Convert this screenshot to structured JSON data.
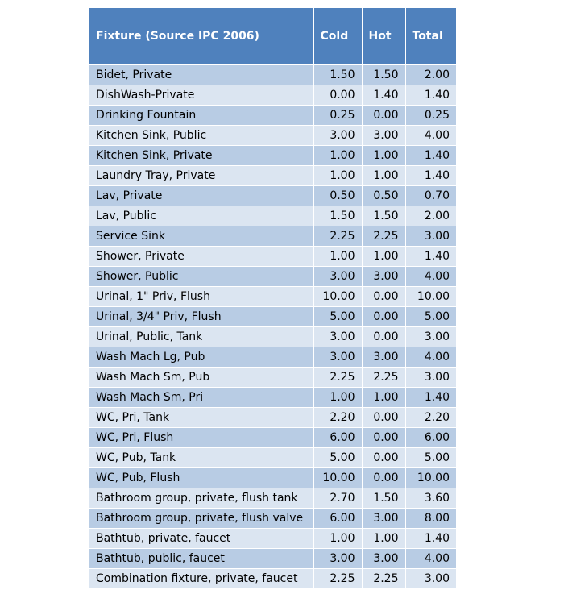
{
  "table": {
    "header": [
      "Fixture (Source IPC 2006)",
      "Cold",
      "Hot",
      "Total"
    ],
    "rows": [
      [
        "Bidet, Private",
        "1.50",
        "1.50",
        "2.00"
      ],
      [
        "DishWash-Private",
        "0.00",
        "1.40",
        "1.40"
      ],
      [
        "Drinking Fountain",
        "0.25",
        "0.00",
        "0.25"
      ],
      [
        "Kitchen Sink, Public",
        "3.00",
        "3.00",
        "4.00"
      ],
      [
        "Kitchen Sink, Private",
        "1.00",
        "1.00",
        "1.40"
      ],
      [
        "Laundry Tray, Private",
        "1.00",
        "1.00",
        "1.40"
      ],
      [
        "Lav, Private",
        "0.50",
        "0.50",
        "0.70"
      ],
      [
        "Lav, Public",
        "1.50",
        "1.50",
        "2.00"
      ],
      [
        "Service Sink",
        "2.25",
        "2.25",
        "3.00"
      ],
      [
        "Shower, Private",
        "1.00",
        "1.00",
        "1.40"
      ],
      [
        "Shower, Public",
        "3.00",
        "3.00",
        "4.00"
      ],
      [
        "Urinal, 1\" Priv, Flush",
        "10.00",
        "0.00",
        "10.00"
      ],
      [
        "Urinal, 3/4\" Priv, Flush",
        "5.00",
        "0.00",
        "5.00"
      ],
      [
        "Urinal, Public, Tank",
        "3.00",
        "0.00",
        "3.00"
      ],
      [
        "Wash Mach Lg, Pub",
        "3.00",
        "3.00",
        "4.00"
      ],
      [
        "Wash Mach Sm, Pub",
        "2.25",
        "2.25",
        "3.00"
      ],
      [
        "Wash Mach Sm, Pri",
        "1.00",
        "1.00",
        "1.40"
      ],
      [
        "WC, Pri, Tank",
        "2.20",
        "0.00",
        "2.20"
      ],
      [
        "WC, Pri, Flush",
        "6.00",
        "0.00",
        "6.00"
      ],
      [
        "WC, Pub, Tank",
        "5.00",
        "0.00",
        "5.00"
      ],
      [
        "WC, Pub, Flush",
        "10.00",
        "0.00",
        "10.00"
      ],
      [
        "Bathroom group, private, flush tank",
        "2.70",
        "1.50",
        "3.60"
      ],
      [
        "Bathroom group, private, flush valve",
        "6.00",
        "3.00",
        "8.00"
      ],
      [
        "Bathtub, private, faucet",
        "1.00",
        "1.00",
        "1.40"
      ],
      [
        "Bathtub, public, faucet",
        "3.00",
        "3.00",
        "4.00"
      ],
      [
        "Combination fixture, private, faucet",
        "2.25",
        "2.25",
        "3.00"
      ]
    ]
  }
}
